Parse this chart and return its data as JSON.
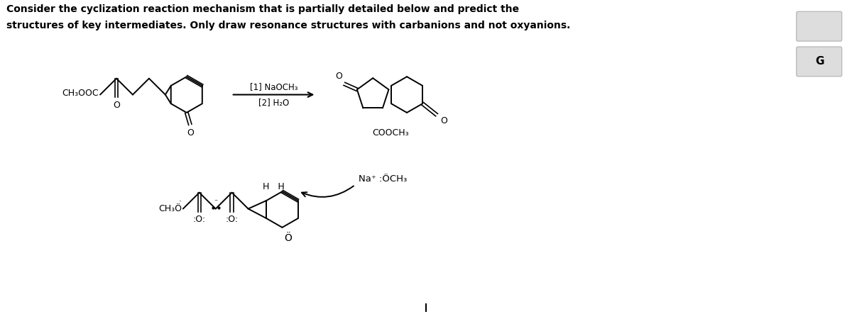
{
  "title_line1": "Consider the cyclization reaction mechanism that is partially detailed below and predict the",
  "title_line2": "structures of key intermediates. Only draw resonance structures with carbanions and not oxyanions.",
  "bg_color": "#ffffff",
  "text_color": "#000000",
  "fig_width": 12.0,
  "fig_height": 4.43,
  "button2_text": "G",
  "reaction_label1": "[1] NaOCH₃",
  "reaction_label2": "[2] H₂O",
  "reagent_label": "Na⁺ :ÖCH₃",
  "reactant_label": "CH₃OOC",
  "product_label": "COOCH₃",
  "hh_label": "H   H"
}
